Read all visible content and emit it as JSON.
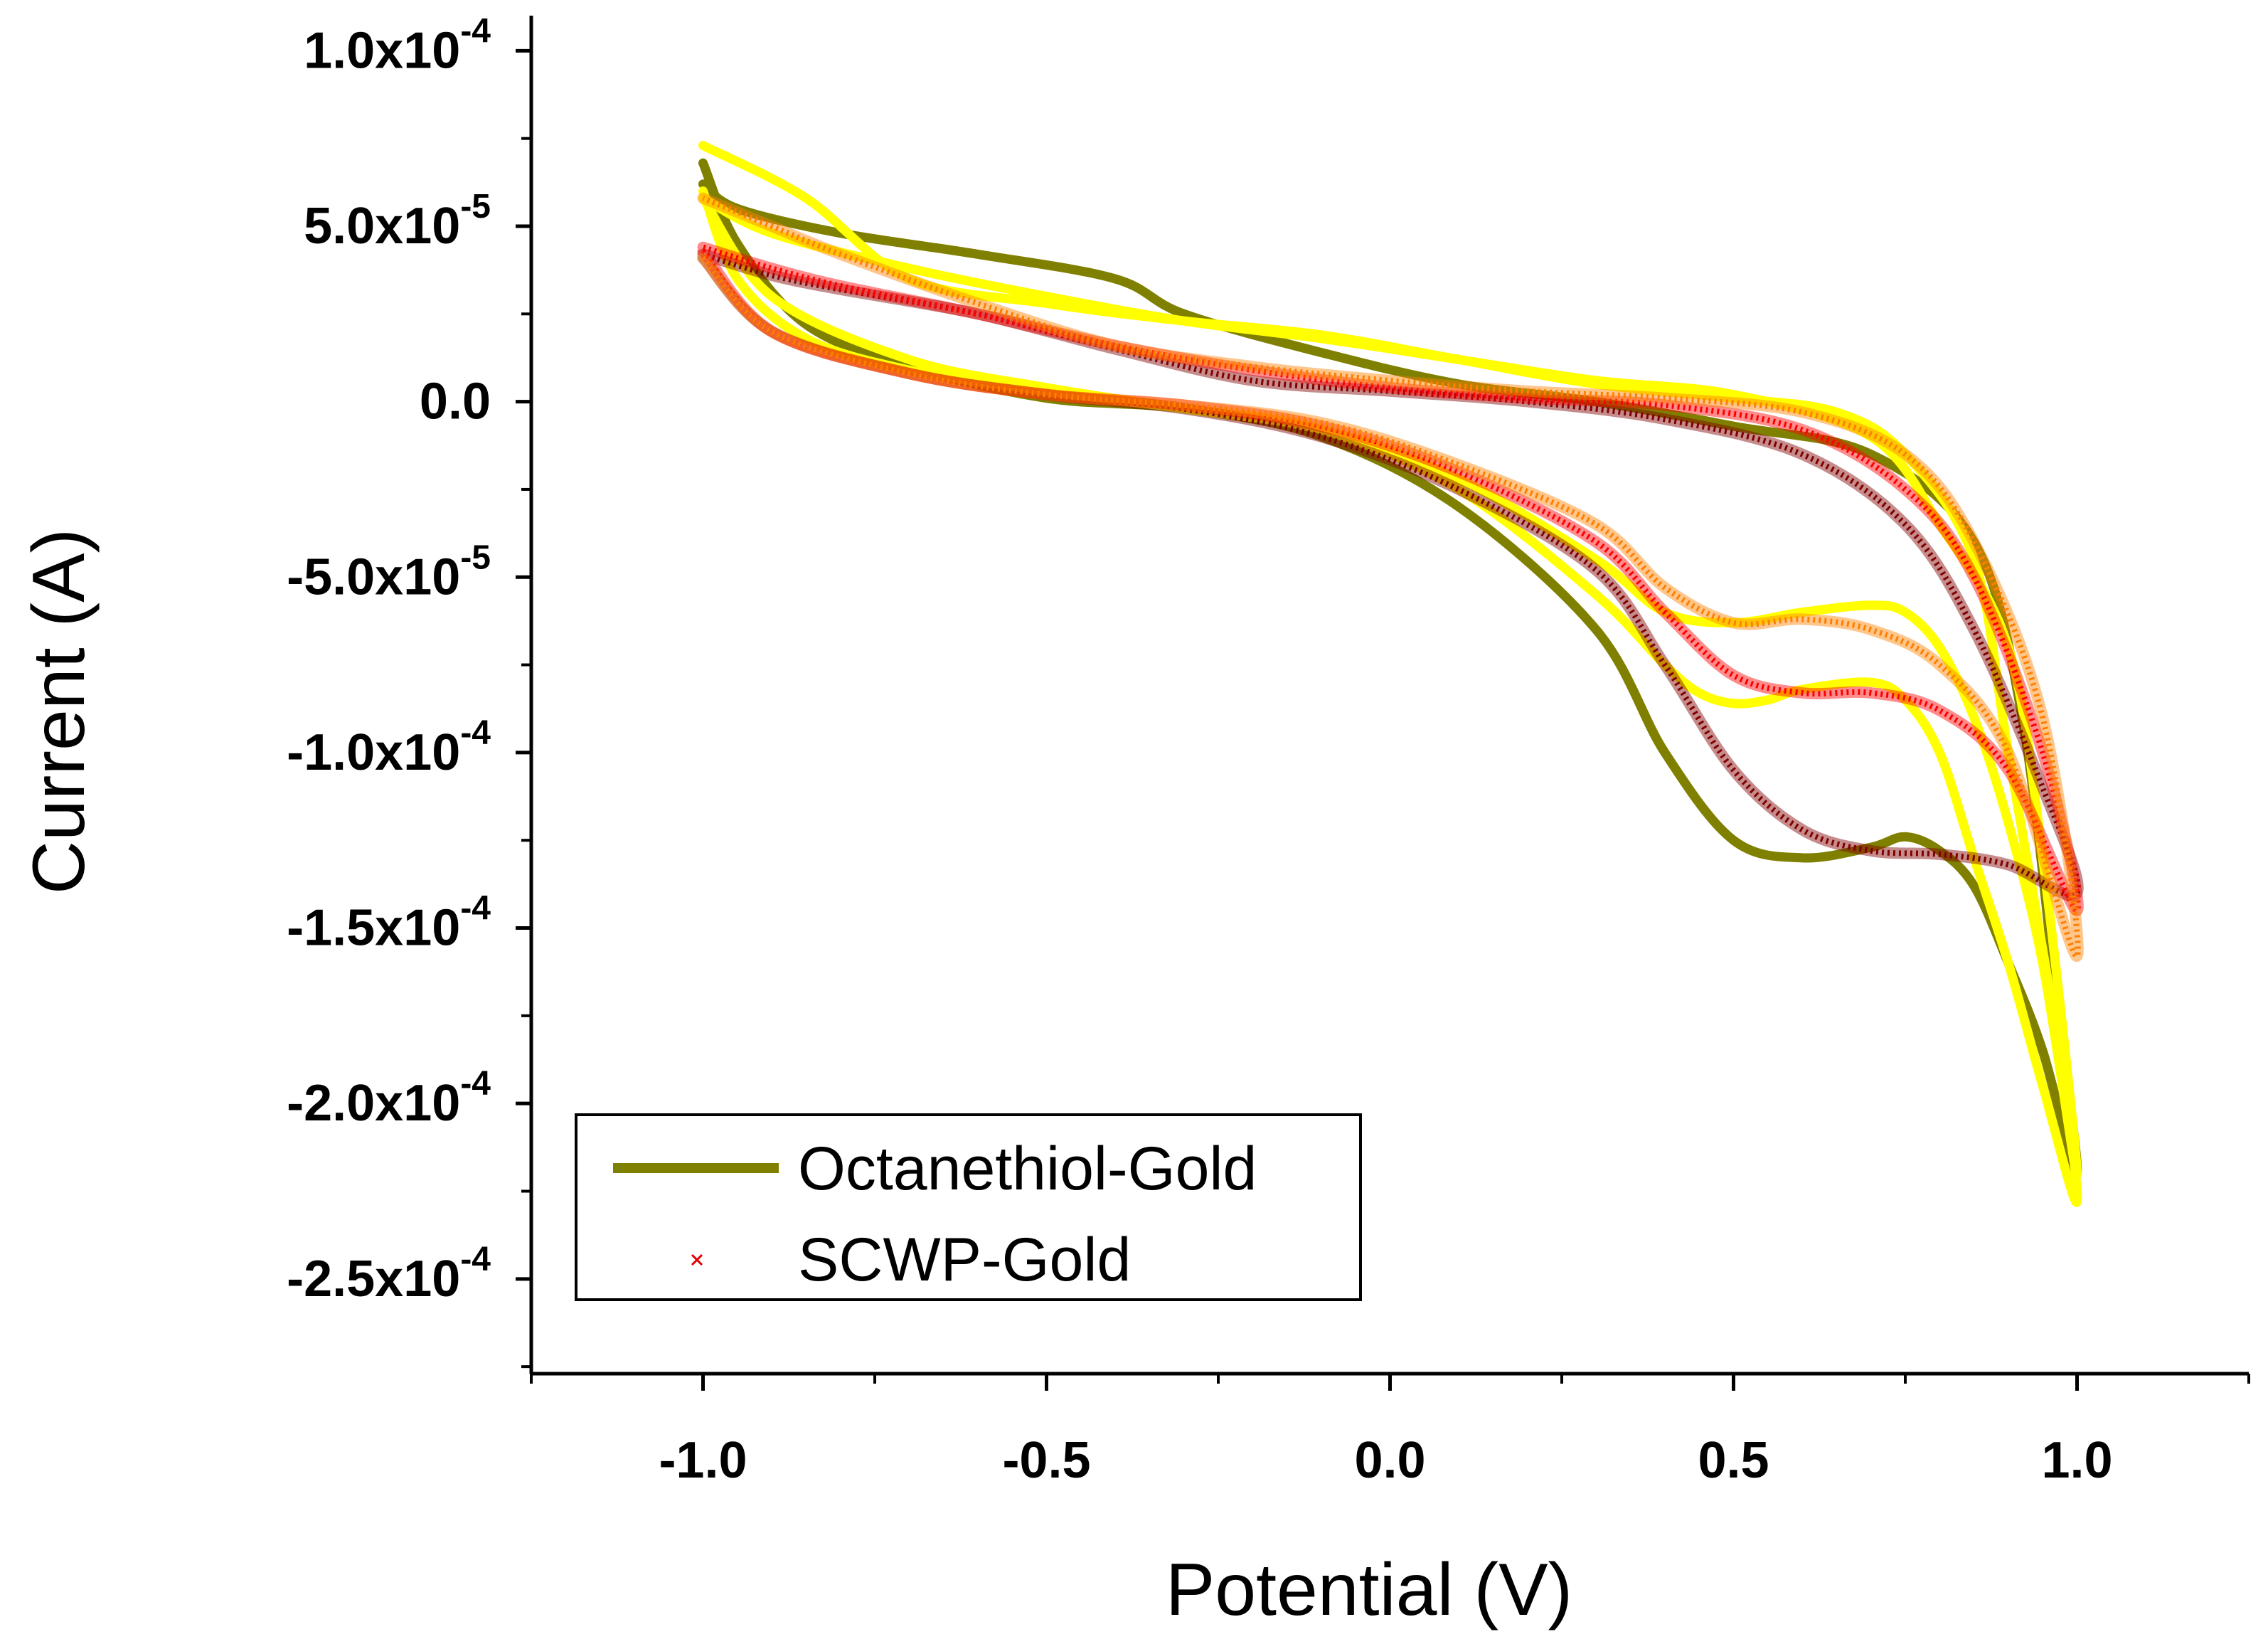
{
  "chart_data": {
    "type": "line",
    "title": "",
    "xlabel": "Potential (V)",
    "ylabel": "Current (A)",
    "xlim": [
      -1.25,
      1.25
    ],
    "ylim": [
      -0.000277,
      0.00011
    ],
    "x_ticks": [
      {
        "value": -1.0,
        "label": "-1.0"
      },
      {
        "value": -0.5,
        "label": "-0.5"
      },
      {
        "value": 0.0,
        "label": "0.0"
      },
      {
        "value": 0.5,
        "label": "0.5"
      },
      {
        "value": 1.0,
        "label": "1.0"
      }
    ],
    "y_ticks": [
      {
        "value": 0.0001,
        "mantissa": "1.0x10",
        "exponent": "-4"
      },
      {
        "value": 5e-05,
        "mantissa": "5.0x10",
        "exponent": "-5"
      },
      {
        "value": 0.0,
        "mantissa": "0.0",
        "exponent": ""
      },
      {
        "value": -5e-05,
        "mantissa": "-5.0x10",
        "exponent": "-5"
      },
      {
        "value": -0.0001,
        "mantissa": "-1.0x10",
        "exponent": "-4"
      },
      {
        "value": -0.00015,
        "mantissa": "-1.5x10",
        "exponent": "-4"
      },
      {
        "value": -0.0002,
        "mantissa": "-2.0x10",
        "exponent": "-4"
      },
      {
        "value": -0.00025,
        "mantissa": "-2.5x10",
        "exponent": "-4"
      }
    ],
    "grid": false,
    "legend": {
      "position": "bottom-left",
      "entries": [
        {
          "label": "Octanethiol-Gold",
          "style": "line",
          "color": "#808000"
        },
        {
          "label": "SCWP-Gold",
          "style": "cross",
          "color": "#e00000"
        }
      ]
    },
    "series": [
      {
        "name": "Octanethiol-Gold (olive)",
        "style": "line",
        "color": "#808000",
        "x": [
          -1.0,
          -0.95,
          -0.85,
          -0.7,
          -0.5,
          -0.3,
          -0.1,
          0.1,
          0.3,
          0.4,
          0.5,
          0.6,
          0.7,
          0.75,
          0.8,
          0.85,
          0.9,
          0.95,
          1.0,
          0.97,
          0.92,
          0.85,
          0.7,
          0.5,
          0.3,
          0.1,
          -0.1,
          -0.3,
          -0.4,
          -0.6,
          -0.8,
          -0.95,
          -1.0
        ],
        "y": [
          6.8e-05,
          4.5e-05,
          2.2e-05,
          1e-05,
          1e-06,
          -2e-06,
          -1e-05,
          -3e-05,
          -6.5e-05,
          -0.0001,
          -0.000125,
          -0.00013,
          -0.000127,
          -0.000124,
          -0.000128,
          -0.000138,
          -0.00016,
          -0.000185,
          -0.00022,
          -0.00017,
          -9e-05,
          -4e-05,
          -1.5e-05,
          -7e-06,
          0.0,
          5e-06,
          1.4e-05,
          2.5e-05,
          3.5e-05,
          4.2e-05,
          4.8e-05,
          5.5e-05,
          6.2e-05
        ]
      },
      {
        "name": "Octanethiol-Gold (yellow)",
        "style": "line",
        "color": "#ffff00",
        "x": [
          -1.0,
          -0.95,
          -0.85,
          -0.7,
          -0.5,
          -0.3,
          -0.1,
          0.1,
          0.3,
          0.4,
          0.45,
          0.5,
          0.55,
          0.6,
          0.7,
          0.75,
          0.8,
          0.85,
          0.9,
          0.95,
          1.0,
          0.97,
          0.9,
          0.85,
          0.75,
          0.65,
          0.5,
          0.3,
          0.1,
          -0.1,
          -0.3,
          -0.5,
          -0.7,
          -0.85,
          -1.0
        ],
        "y": [
          6e-05,
          3.5e-05,
          1.8e-05,
          9e-06,
          3e-06,
          -2e-06,
          -8e-06,
          -2.5e-05,
          -5.5e-05,
          -7.5e-05,
          -8.3e-05,
          -8.6e-05,
          -8.5e-05,
          -8.2e-05,
          -8e-05,
          -8.5e-05,
          -0.0001,
          -0.00013,
          -0.00016,
          -0.000195,
          -0.000228,
          -0.00018,
          -0.0001,
          -4.5e-05,
          -1.5e-05,
          -3e-06,
          1e-06,
          5e-06,
          1.2e-05,
          1.9e-05,
          2.3e-05,
          2.8e-05,
          3.5e-05,
          5.8e-05,
          7.3e-05
        ]
      },
      {
        "name": "Octanethiol-Gold (yellow inner)",
        "style": "line",
        "color": "#ffff00",
        "x": [
          -1.0,
          -0.9,
          -0.7,
          -0.5,
          -0.3,
          -0.1,
          0.1,
          0.3,
          0.4,
          0.5,
          0.6,
          0.7,
          0.75,
          0.8,
          0.85,
          0.9,
          0.95,
          1.0,
          0.95,
          0.9,
          0.8,
          0.7,
          0.5,
          0.3,
          0.1,
          -0.1,
          -0.3,
          -0.5,
          -0.7,
          -0.9,
          -1.0
        ],
        "y": [
          5.8e-05,
          3e-05,
          1.2e-05,
          4e-06,
          -2e-06,
          -8e-06,
          -2.2e-05,
          -4.5e-05,
          -6e-05,
          -6.3e-05,
          -6e-05,
          -5.8e-05,
          -6e-05,
          -7e-05,
          -9e-05,
          -0.00012,
          -0.00016,
          -0.00022,
          -0.00013,
          -7e-05,
          -3.5e-05,
          -1e-05,
          2e-06,
          6e-06,
          1.2e-05,
          1.8e-05,
          2.3e-05,
          3e-05,
          3.8e-05,
          4.8e-05,
          5.8e-05
        ]
      },
      {
        "name": "SCWP-Gold (dark red)",
        "style": "cross",
        "color": "#800000",
        "x": [
          -1.0,
          -0.9,
          -0.7,
          -0.5,
          -0.3,
          -0.1,
          0.1,
          0.3,
          0.4,
          0.5,
          0.6,
          0.7,
          0.8,
          0.9,
          1.0,
          0.95,
          0.85,
          0.75,
          0.6,
          0.4,
          0.2,
          0.0,
          -0.2,
          -0.4,
          -0.6,
          -0.8,
          -0.9,
          -1.0
        ],
        "y": [
          4.1e-05,
          2e-05,
          8e-06,
          2e-06,
          -2e-06,
          -1e-05,
          -2.5e-05,
          -4.8e-05,
          -7.5e-05,
          -0.000105,
          -0.000122,
          -0.000128,
          -0.000129,
          -0.000132,
          -0.00014,
          -0.00011,
          -6.5e-05,
          -3.5e-05,
          -1.5e-05,
          -5e-06,
          0.0,
          3e-06,
          6e-06,
          1.5e-05,
          2.5e-05,
          3.2e-05,
          3.6e-05,
          4.2e-05
        ]
      },
      {
        "name": "SCWP-Gold (red)",
        "style": "cross",
        "color": "#ff0000",
        "x": [
          -1.0,
          -0.9,
          -0.7,
          -0.5,
          -0.3,
          -0.1,
          0.1,
          0.3,
          0.4,
          0.5,
          0.6,
          0.7,
          0.8,
          0.9,
          1.0,
          0.95,
          0.85,
          0.75,
          0.6,
          0.4,
          0.2,
          0.0,
          -0.2,
          -0.4,
          -0.6,
          -0.8,
          -0.9,
          -1.0
        ],
        "y": [
          4.3e-05,
          2e-05,
          8e-06,
          2e-06,
          -1e-06,
          -7e-06,
          -2e-05,
          -4e-05,
          -6e-05,
          -7.8e-05,
          -8.3e-05,
          -8.3e-05,
          -8.8e-05,
          -0.000105,
          -0.000145,
          -0.0001,
          -5e-05,
          -2.5e-05,
          -8e-06,
          -1e-06,
          1e-06,
          4e-06,
          9e-06,
          1.6e-05,
          2.5e-05,
          3.3e-05,
          3.8e-05,
          4.4e-05
        ]
      },
      {
        "name": "SCWP-Gold (orange)",
        "style": "cross",
        "color": "#ff8000",
        "x": [
          -1.0,
          -0.9,
          -0.7,
          -0.5,
          -0.3,
          -0.1,
          0.1,
          0.3,
          0.4,
          0.5,
          0.6,
          0.7,
          0.8,
          0.9,
          1.0,
          0.95,
          0.85,
          0.75,
          0.6,
          0.4,
          0.2,
          0.0,
          -0.2,
          -0.4,
          -0.6,
          -0.8,
          -0.9,
          -1.0
        ],
        "y": [
          4.1e-05,
          2e-05,
          8e-06,
          2e-06,
          -1e-06,
          -6e-06,
          -1.8e-05,
          -3.5e-05,
          -5.3e-05,
          -6.3e-05,
          -6.2e-05,
          -6.5e-05,
          -7.5e-05,
          -0.0001,
          -0.000158,
          -9e-05,
          -4e-05,
          -1.5e-05,
          -3e-06,
          1e-06,
          3e-06,
          6e-06,
          1e-05,
          1.6e-05,
          2.8e-05,
          4.2e-05,
          5e-05,
          5.8e-05
        ]
      }
    ]
  }
}
